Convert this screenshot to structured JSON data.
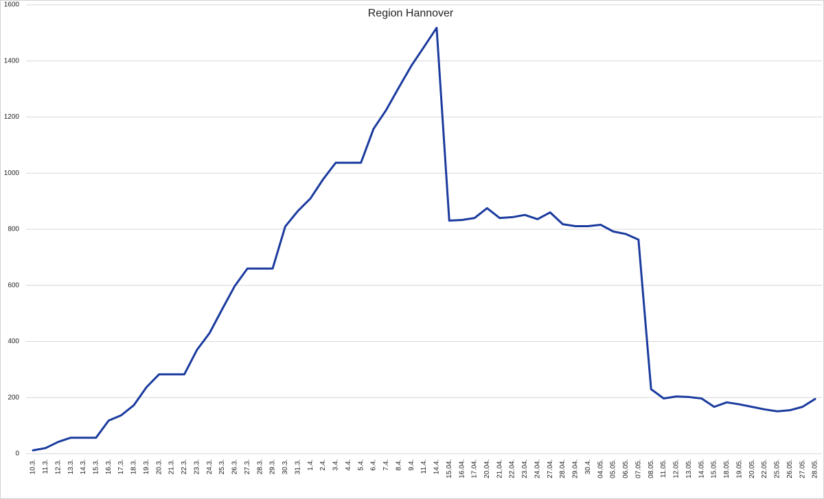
{
  "chart_data": {
    "type": "line",
    "title": "Region Hannover",
    "categories": [
      "10.3.",
      "11.3.",
      "12.3.",
      "13.3.",
      "14.3.",
      "15.3.",
      "16.3.",
      "17.3.",
      "18.3.",
      "19.3.",
      "20.3.",
      "21.3.",
      "22.3.",
      "23.3.",
      "24.3.",
      "25.3.",
      "26.3.",
      "27.3.",
      "28.3.",
      "29.3.",
      "30.3.",
      "31.3.",
      "1.4.",
      "2.4.",
      "3.4.",
      "4.4.",
      "5.4.",
      "6.4.",
      "7.4.",
      "8.4.",
      "9.4.",
      "11.4.",
      "14.4.",
      "15.04.",
      "16.04.",
      "17.04.",
      "20.04.",
      "21.04.",
      "22.04.",
      "23.04.",
      "24.04.",
      "27.04.",
      "28.04.",
      "29.04.",
      "30.4.",
      "04.05.",
      "05.05.",
      "06.05.",
      "07.05.",
      "08.05.",
      "11.05.",
      "12.05.",
      "13.05.",
      "14.05.",
      "15.05.",
      "18.05.",
      "19.05.",
      "20.05.",
      "22.05.",
      "25.05.",
      "26.05.",
      "27.05.",
      "28.05."
    ],
    "values": [
      12,
      20,
      42,
      57,
      57,
      57,
      118,
      137,
      173,
      237,
      283,
      283,
      283,
      370,
      430,
      515,
      598,
      660,
      660,
      660,
      810,
      865,
      910,
      978,
      1037,
      1037,
      1037,
      1158,
      1225,
      1305,
      1383,
      1450,
      1518,
      831,
      833,
      840,
      875,
      840,
      843,
      851,
      836,
      860,
      818,
      811,
      811,
      816,
      792,
      783,
      763,
      230,
      197,
      204,
      202,
      197,
      167,
      183,
      176,
      167,
      158,
      151,
      155,
      167,
      195
    ],
    "color": "#1a3a9e",
    "ylim": [
      0,
      1600
    ],
    "yticks": [
      0,
      200,
      400,
      600,
      800,
      1000,
      1200,
      1400,
      1600
    ],
    "grid": true
  }
}
